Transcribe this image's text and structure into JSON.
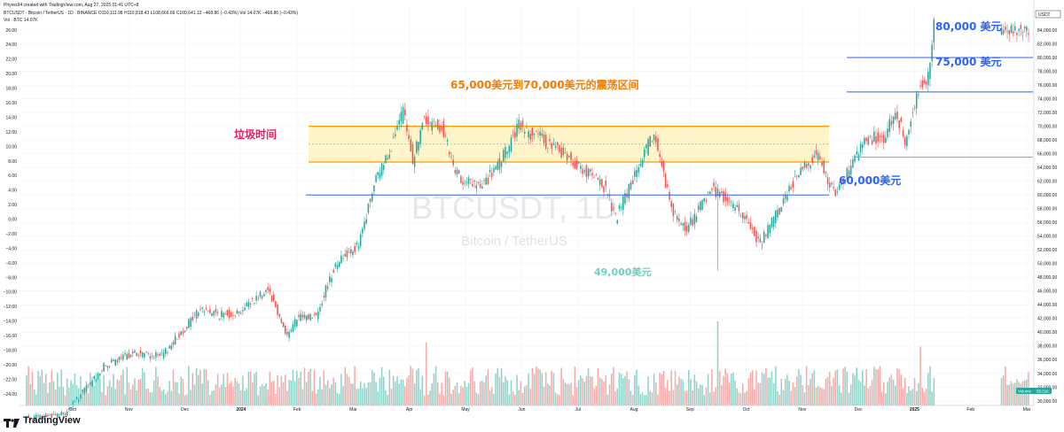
{
  "header": {
    "line1": "Phyres94 created with TradingView.com, Aug 27, 2025 01:41 UTC+8",
    "line2": "BTCUSDT · Bitcoin / TetherUS · 1D · BINANCE  O110,111.98 H110,818.43 L108,666.66 C109,641.12 −468.86 (−0.43%)  Vol 14.07K −468.86 (−0.43%)",
    "line3": "Vol · BTC  14.07K"
  },
  "watermark": {
    "symbol": "BTCUSDT, 1D",
    "name": "Bitcoin / TetherUS"
  },
  "logo": {
    "text": "TradingView"
  },
  "colors": {
    "up": "#26a69a",
    "down": "#ef5350",
    "vol_up": "#8fd2c8",
    "vol_down": "#f7a9a7",
    "range_fill": "#fff3c4",
    "range_line": "#ff9800",
    "support": "#2962ff",
    "annot_orange": "#f57c00",
    "annot_red": "#e91e63",
    "annot_blue": "#2962ff",
    "annot_teal": "#70d0c0"
  },
  "chart_data": {
    "type": "candlestick",
    "symbol": "BTCUSDT",
    "timeframe": "1D",
    "right_axis": {
      "label": "USDT",
      "ticks": [
        "84,000.00",
        "82,000.00",
        "80,000.00",
        "78,000.00",
        "76,000.00",
        "74,000.00",
        "72,000.00",
        "70,000.00",
        "68,000.00",
        "66,000.00",
        "64,000.00",
        "62,000.00",
        "60,000.00",
        "58,000.00",
        "56,000.00",
        "54,000.00",
        "52,000.00",
        "50,000.00",
        "48,000.00",
        "46,000.00",
        "44,000.00",
        "42,000.00",
        "40,000.00",
        "38,000.00",
        "36,000.00",
        "34,000.00",
        "32,000.00",
        "30,000.00"
      ]
    },
    "left_axis": {
      "ticks": [
        "26.00",
        "24.00",
        "22.00",
        "20.00",
        "18.00",
        "16.00",
        "14.00",
        "12.00",
        "10.00",
        "8.00",
        "6.00",
        "4.00",
        "2.00",
        "0.00",
        "−2.00",
        "−4.00",
        "−6.00",
        "−8.00",
        "−10.00",
        "−12.00",
        "−14.00",
        "−16.00",
        "−18.00",
        "−20.00",
        "−22.00",
        "−24.00"
      ]
    },
    "time_axis": [
      "Oct",
      "Nov",
      "Dec",
      "2024",
      "Feb",
      "Mar",
      "Apr",
      "May",
      "Jun",
      "Jul",
      "Aug",
      "Sep",
      "Oct",
      "Nov",
      "Dec",
      "2025",
      "Feb",
      "Mar"
    ],
    "waypoints": [
      [
        0,
        27500
      ],
      [
        20,
        28200
      ],
      [
        40,
        35000
      ],
      [
        55,
        37000
      ],
      [
        70,
        36500
      ],
      [
        90,
        43500
      ],
      [
        100,
        42500
      ],
      [
        110,
        43000
      ],
      [
        125,
        46500
      ],
      [
        135,
        39500
      ],
      [
        140,
        42000
      ],
      [
        150,
        42500
      ],
      [
        160,
        50000
      ],
      [
        168,
        52000
      ],
      [
        172,
        52500
      ],
      [
        180,
        61500
      ],
      [
        190,
        68000
      ],
      [
        195,
        72000
      ],
      [
        200,
        65000
      ],
      [
        205,
        70500
      ],
      [
        215,
        70000
      ],
      [
        222,
        63000
      ],
      [
        235,
        61000
      ],
      [
        245,
        64500
      ],
      [
        255,
        70000
      ],
      [
        265,
        68500
      ],
      [
        280,
        65500
      ],
      [
        300,
        61000
      ],
      [
        305,
        56500
      ],
      [
        325,
        69000
      ],
      [
        335,
        57000
      ],
      [
        342,
        55000
      ],
      [
        355,
        61000
      ],
      [
        370,
        57500
      ],
      [
        380,
        53000
      ],
      [
        390,
        58000
      ],
      [
        400,
        63500
      ],
      [
        410,
        66000
      ],
      [
        418,
        60200
      ],
      [
        425,
        63000
      ],
      [
        435,
        68000
      ],
      [
        445,
        68500
      ],
      [
        450,
        72500
      ],
      [
        455,
        68000
      ],
      [
        463,
        76000
      ],
      [
        467,
        77500
      ],
      [
        470,
        85000
      ]
    ],
    "series_tail": [
      [
        470,
        85000
      ],
      [
        520,
        85000
      ]
    ],
    "volume_spikes": [
      {
        "i": 358,
        "v": 1.0
      },
      {
        "i": 207,
        "v": 0.75
      },
      {
        "i": 463,
        "v": 0.7
      }
    ],
    "levels": [
      {
        "value": 80000,
        "label": "80,000 美元",
        "color": "#2962ff"
      },
      {
        "value": 75000,
        "label": "75,000 美元",
        "color": "#2962ff"
      },
      {
        "value": 60000,
        "label": "60,000美元",
        "color": "#2962ff"
      },
      {
        "value": 65500,
        "label": "",
        "color": "#ff9800"
      }
    ],
    "range_zone": {
      "low": 64800,
      "high": 70000,
      "label": "65,000美元到70,000美元的震荡区间"
    },
    "annotations": [
      {
        "text": "垃圾时间",
        "color": "#e91e63"
      },
      {
        "text": "49,000美元",
        "color": "#70d0c0",
        "low_value": 49000
      }
    ],
    "volume_label": "Volume",
    "volume_value": "55.61K",
    "price_badge": "USDT"
  }
}
